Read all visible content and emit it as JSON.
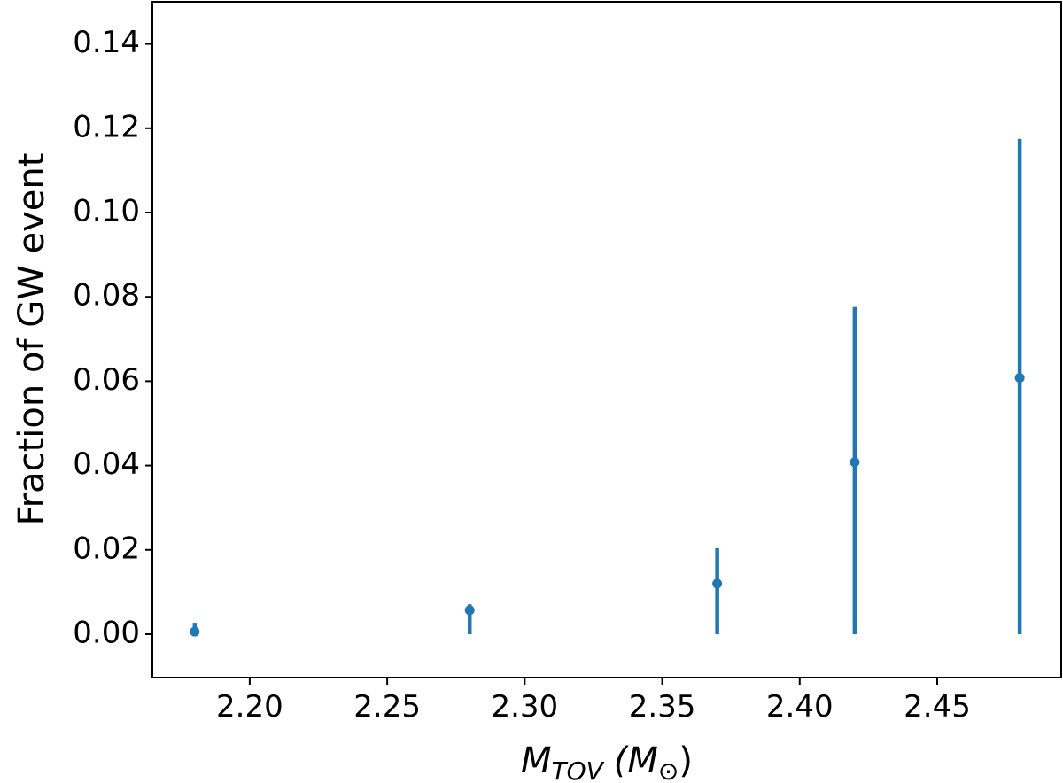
{
  "chart_data": {
    "type": "errorbar",
    "xlabel": [
      "M",
      "TOV",
      "(M",
      "⊙",
      ")"
    ],
    "ylabel": "Fraction of GW event",
    "x": [
      2.18,
      2.28,
      2.37,
      2.42,
      2.48
    ],
    "series": [
      {
        "color": "#1f77b4",
        "values": [
          0.0006,
          0.0057,
          0.012,
          0.0408,
          0.0608
        ],
        "error_low": [
          0.0006,
          0.0057,
          0.012,
          0.0408,
          0.0608
        ],
        "error_high": [
          0.0021,
          0.0014,
          0.0084,
          0.0368,
          0.0567
        ]
      }
    ],
    "xlim": [
      2.1646,
      2.4951
    ],
    "ylim": [
      -0.0103,
      0.15
    ],
    "xticks": [
      {
        "value": 2.2,
        "label": "2.20"
      },
      2.25,
      {
        "value": 2.3,
        "label": "2.30"
      },
      2.35,
      {
        "value": 2.4,
        "label": "2.40"
      },
      2.45
    ],
    "yticks": [
      {
        "value": 0,
        "label": "0.00"
      },
      {
        "value": 0.02,
        "label": "0.02"
      },
      {
        "value": 0.04,
        "label": "0.04"
      },
      {
        "value": 0.06,
        "label": "0.06"
      },
      {
        "value": 0.08,
        "label": "0.08"
      },
      {
        "value": 0.1,
        "label": "0.10"
      },
      {
        "value": 0.12,
        "label": "0.12"
      },
      {
        "value": 0.14,
        "label": "0.14"
      }
    ],
    "grid": false
  }
}
